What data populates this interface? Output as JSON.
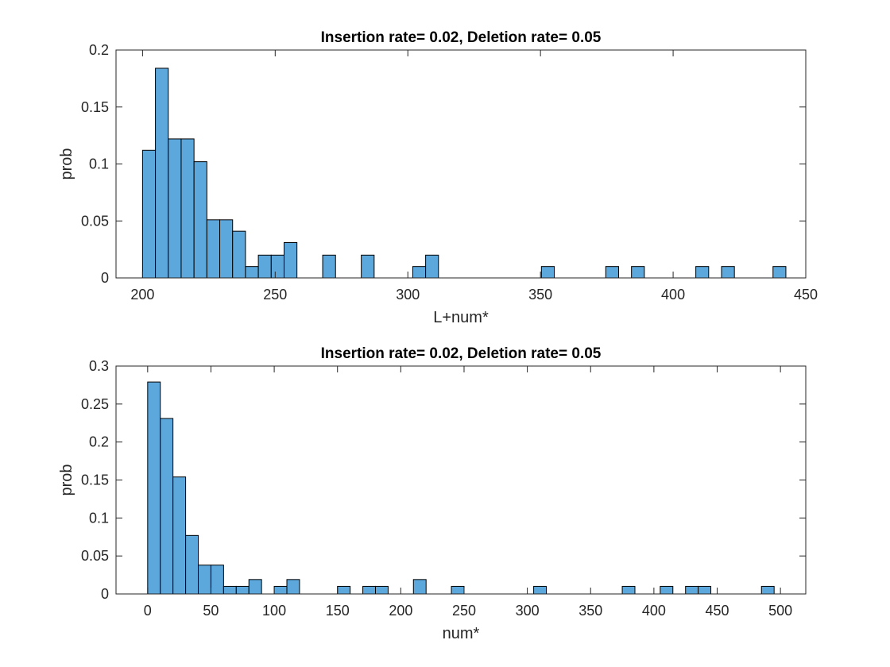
{
  "colors": {
    "bar_fill": "#5ca7db",
    "bar_edge": "#000000",
    "axis": "#262626"
  },
  "chart_data": [
    {
      "type": "bar",
      "title": "Insertion rate= 0.02, Deletion rate= 0.05",
      "xlabel": "L+num*",
      "ylabel": "prob",
      "xlim": [
        190,
        450
      ],
      "ylim": [
        0,
        0.2
      ],
      "xticks": [
        200,
        250,
        300,
        350,
        400,
        450
      ],
      "yticks": [
        0,
        0.05,
        0.1,
        0.15,
        0.2
      ],
      "xtick_labels": [
        "200",
        "250",
        "300",
        "350",
        "400",
        "450"
      ],
      "ytick_labels": [
        "0",
        "0.05",
        "0.1",
        "0.15",
        "0.2"
      ],
      "bin_width": 4.85,
      "bins": [
        {
          "x": 200,
          "y": 0.112
        },
        {
          "x": 204.85,
          "y": 0.184
        },
        {
          "x": 209.7,
          "y": 0.122
        },
        {
          "x": 214.55,
          "y": 0.122
        },
        {
          "x": 219.4,
          "y": 0.102
        },
        {
          "x": 224.25,
          "y": 0.051
        },
        {
          "x": 229.1,
          "y": 0.051
        },
        {
          "x": 233.95,
          "y": 0.041
        },
        {
          "x": 238.8,
          "y": 0.01
        },
        {
          "x": 243.65,
          "y": 0.02
        },
        {
          "x": 248.5,
          "y": 0.02
        },
        {
          "x": 253.35,
          "y": 0.031
        },
        {
          "x": 267.9,
          "y": 0.02
        },
        {
          "x": 282.45,
          "y": 0.02
        },
        {
          "x": 301.85,
          "y": 0.01
        },
        {
          "x": 306.7,
          "y": 0.02
        },
        {
          "x": 350.35,
          "y": 0.01
        },
        {
          "x": 374.6,
          "y": 0.01
        },
        {
          "x": 384.3,
          "y": 0.01
        },
        {
          "x": 408.55,
          "y": 0.01
        },
        {
          "x": 418.25,
          "y": 0.01
        },
        {
          "x": 437.65,
          "y": 0.01
        }
      ]
    },
    {
      "type": "bar",
      "title": "Insertion rate= 0.02, Deletion rate= 0.05",
      "xlabel": "num*",
      "ylabel": "prob",
      "xlim": [
        -25,
        520
      ],
      "ylim": [
        0,
        0.3
      ],
      "xticks": [
        0,
        50,
        100,
        150,
        200,
        250,
        300,
        350,
        400,
        450,
        500
      ],
      "yticks": [
        0,
        0.05,
        0.1,
        0.15,
        0.2,
        0.25,
        0.3
      ],
      "xtick_labels": [
        "0",
        "50",
        "100",
        "150",
        "200",
        "250",
        "300",
        "350",
        "400",
        "450",
        "500"
      ],
      "ytick_labels": [
        "0",
        "0.05",
        "0.1",
        "0.15",
        "0.2",
        "0.25",
        "0.3"
      ],
      "bin_width": 10,
      "bins": [
        {
          "x": 0,
          "y": 0.279
        },
        {
          "x": 10,
          "y": 0.231
        },
        {
          "x": 20,
          "y": 0.154
        },
        {
          "x": 30,
          "y": 0.077
        },
        {
          "x": 40,
          "y": 0.038
        },
        {
          "x": 50,
          "y": 0.038
        },
        {
          "x": 60,
          "y": 0.01
        },
        {
          "x": 70,
          "y": 0.01
        },
        {
          "x": 80,
          "y": 0.019
        },
        {
          "x": 100,
          "y": 0.01
        },
        {
          "x": 110,
          "y": 0.019
        },
        {
          "x": 150,
          "y": 0.01
        },
        {
          "x": 170,
          "y": 0.01
        },
        {
          "x": 180,
          "y": 0.01
        },
        {
          "x": 210,
          "y": 0.019
        },
        {
          "x": 240,
          "y": 0.01
        },
        {
          "x": 305,
          "y": 0.01
        },
        {
          "x": 375,
          "y": 0.01
        },
        {
          "x": 405,
          "y": 0.01
        },
        {
          "x": 425,
          "y": 0.01
        },
        {
          "x": 435,
          "y": 0.01
        },
        {
          "x": 485,
          "y": 0.01
        }
      ]
    }
  ]
}
